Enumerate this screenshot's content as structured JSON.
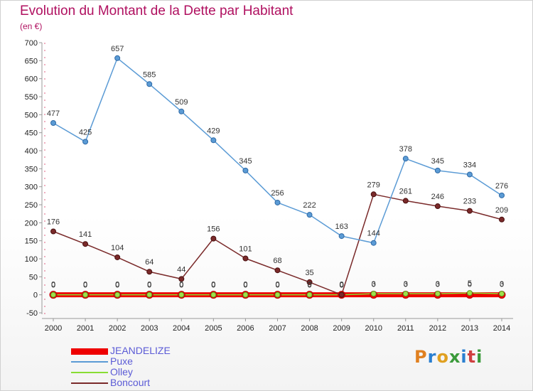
{
  "title": "Evolution du Montant de la Dette par Habitant",
  "subtitle": "(en €)",
  "logo": "Proxiti",
  "colors": {
    "title": "#b01060",
    "logo_letters": [
      "#e08020",
      "#2a7fd0",
      "#e0a020",
      "#3a9a3a",
      "#2a7fd0",
      "#d04040",
      "#3a9a3a"
    ]
  },
  "chart_data": {
    "type": "line",
    "x": [
      2000,
      2001,
      2002,
      2003,
      2004,
      2005,
      2006,
      2007,
      2008,
      2009,
      2010,
      2011,
      2012,
      2013,
      2014
    ],
    "ylim": [
      -50,
      700
    ],
    "yticks": [
      -50,
      0,
      50,
      100,
      150,
      200,
      250,
      300,
      350,
      400,
      450,
      500,
      550,
      600,
      650,
      700
    ],
    "grid": false,
    "legend_position": "bottom-left",
    "series": [
      {
        "name": "JEANDELIZE",
        "color": "#ee0000",
        "values": [
          0,
          0,
          0,
          0,
          0,
          0,
          0,
          0,
          0,
          0,
          0,
          0,
          0,
          0,
          0
        ],
        "labels": [
          "0",
          "0",
          "0",
          "0",
          "0",
          "0",
          "0",
          "0",
          "0",
          "0",
          "0",
          "0",
          "0",
          "0",
          "0"
        ]
      },
      {
        "name": "Puxe",
        "color": "#5b9bd5",
        "values": [
          477,
          425,
          657,
          585,
          509,
          429,
          345,
          256,
          222,
          163,
          144,
          378,
          345,
          334,
          276
        ],
        "labels": [
          "477",
          "425",
          "657",
          "585",
          "509",
          "429",
          "345",
          "256",
          "222",
          "163",
          "144",
          "378",
          "345",
          "334",
          "276"
        ]
      },
      {
        "name": "Olley",
        "color": "#88dd33",
        "values": [
          0,
          0,
          0,
          0,
          0,
          0,
          0,
          0,
          0,
          0,
          3,
          3,
          3,
          5,
          3
        ],
        "labels": [
          "0",
          "0",
          "0",
          "0",
          "0",
          "0",
          "0",
          "0",
          "0",
          "0",
          "3",
          "3",
          "3",
          "5",
          "3"
        ]
      },
      {
        "name": "Boncourt",
        "color": "#7a2a2a",
        "values": [
          176,
          141,
          104,
          64,
          44,
          156,
          101,
          68,
          35,
          0,
          279,
          261,
          246,
          233,
          209
        ],
        "labels": [
          "176",
          "141",
          "104",
          "64",
          "44",
          "156",
          "101",
          "68",
          "35",
          "0",
          "279",
          "261",
          "246",
          "233",
          "209"
        ]
      }
    ]
  }
}
